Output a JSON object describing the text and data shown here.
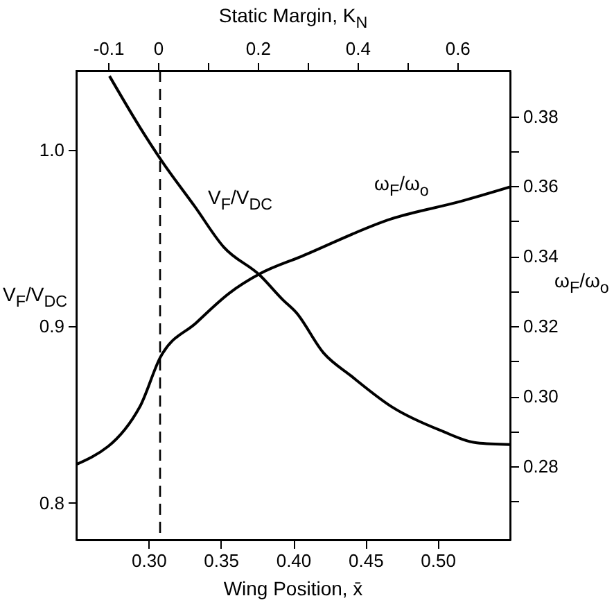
{
  "chart_data": {
    "type": "line",
    "xlabel": "Wing Position, x̄",
    "x2label": "Static Margin, K$_{N}$",
    "ylabel": "V$_{F}$/V$_{DC}$",
    "y2label": "ω$_{F}$/ω$_{o}$",
    "xlim": [
      0.25,
      0.55
    ],
    "xticks": [
      {
        "value": 0.3,
        "label": "0.30"
      },
      {
        "value": 0.35,
        "label": "0.35"
      },
      {
        "value": 0.4,
        "label": "0.40"
      },
      {
        "value": 0.45,
        "label": "0.45"
      },
      {
        "value": 0.5,
        "label": "0.50"
      }
    ],
    "x2lim": [
      -0.164,
      0.706
    ],
    "x2ticks": [
      -0.1,
      0,
      {
        "value": 0.1,
        "label": null
      },
      0.2,
      {
        "value": 0.3,
        "label": null
      },
      0.4,
      {
        "value": 0.5,
        "label": null
      },
      0.6
    ],
    "ylim": [
      0.779,
      1.045
    ],
    "yticks": [
      0.8,
      0.9,
      {
        "value": 1.0,
        "label": "1.0"
      }
    ],
    "y2lim": [
      0.259,
      0.393
    ],
    "y2ticks": [
      {
        "value": 0.27,
        "label": null
      },
      0.28,
      {
        "value": 0.29,
        "label": null
      },
      {
        "value": 0.3,
        "label": "0.30"
      },
      {
        "value": 0.31,
        "label": null
      },
      0.32,
      {
        "value": 0.33,
        "label": null
      },
      0.34,
      {
        "value": 0.35,
        "label": null
      },
      0.36,
      {
        "value": 0.37,
        "label": null
      },
      0.38
    ],
    "series": [
      {
        "name": "V$_{F}$/V$_{DC}$",
        "color": "#000000",
        "x": [
          0.273,
          0.294,
          0.309,
          0.332,
          0.352,
          0.377,
          0.393,
          0.402,
          0.421,
          0.44,
          0.469,
          0.502,
          0.527,
          0.55
        ],
        "values": [
          1.042,
          1.013,
          0.994,
          0.968,
          0.945,
          0.929,
          0.915,
          0.908,
          0.885,
          0.872,
          0.854,
          0.841,
          0.834,
          0.833
        ]
      },
      {
        "name": "ω$_{F}$/ω$_{o}$",
        "color": "#000000",
        "axis": "y2",
        "x": [
          0.25,
          0.294,
          0.308,
          0.333,
          0.356,
          0.377,
          0.406,
          0.468,
          0.516,
          0.55
        ],
        "values": [
          0.2805,
          0.297,
          0.311,
          0.321,
          0.3295,
          0.335,
          0.34,
          0.3507,
          0.3557,
          0.3598
        ]
      }
    ],
    "ref_lines": [
      {
        "axis": "x",
        "value": 0.308,
        "color": "#000000",
        "line_style": "dashed"
      }
    ]
  }
}
